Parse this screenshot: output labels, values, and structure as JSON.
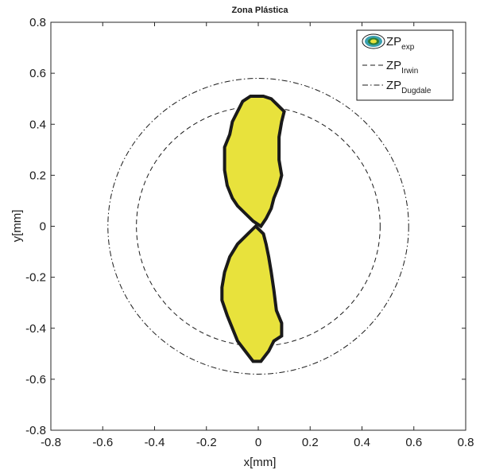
{
  "chart_data": {
    "type": "line",
    "title": "Zona Plástica",
    "xlabel": "x[mm]",
    "ylabel": "y[mm]",
    "xlim": [
      -0.8,
      0.8
    ],
    "ylim": [
      -0.8,
      0.8
    ],
    "xticks": [
      "-0.8",
      "-0.6",
      "-0.4",
      "-0.2",
      "0",
      "0.2",
      "0.4",
      "0.6",
      "0.8"
    ],
    "yticks": [
      "-0.8",
      "-0.6",
      "-0.4",
      "-0.2",
      "0",
      "0.2",
      "0.4",
      "0.6",
      "0.8"
    ],
    "grid": false,
    "legend_position": "top-right",
    "colors": {
      "fill": "#e8e23c",
      "edge": "#1a1a1a",
      "icon_outer": "#3aa0b0",
      "icon_mid": "#2e7d32"
    },
    "series": [
      {
        "name": "ZP",
        "name_sub": "exp",
        "style": "filled-contour",
        "upper_lobe": [
          [
            0.02,
            0.51
          ],
          [
            0.05,
            0.5
          ],
          [
            0.07,
            0.48
          ],
          [
            0.1,
            0.45
          ],
          [
            0.09,
            0.41
          ],
          [
            0.08,
            0.35
          ],
          [
            0.08,
            0.26
          ],
          [
            0.09,
            0.2
          ],
          [
            0.08,
            0.16
          ],
          [
            0.06,
            0.11
          ],
          [
            0.05,
            0.07
          ],
          [
            0.03,
            0.03
          ],
          [
            0.01,
            0.0
          ],
          [
            -0.02,
            0.02
          ],
          [
            -0.05,
            0.05
          ],
          [
            -0.08,
            0.08
          ],
          [
            -0.1,
            0.11
          ],
          [
            -0.12,
            0.16
          ],
          [
            -0.13,
            0.22
          ],
          [
            -0.13,
            0.31
          ],
          [
            -0.11,
            0.36
          ],
          [
            -0.1,
            0.41
          ],
          [
            -0.08,
            0.45
          ],
          [
            -0.06,
            0.49
          ],
          [
            -0.03,
            0.51
          ]
        ],
        "lower_lobe": [
          [
            -0.01,
            0.0
          ],
          [
            -0.04,
            -0.03
          ],
          [
            -0.08,
            -0.07
          ],
          [
            -0.11,
            -0.12
          ],
          [
            -0.13,
            -0.18
          ],
          [
            -0.14,
            -0.24
          ],
          [
            -0.14,
            -0.29
          ],
          [
            -0.12,
            -0.35
          ],
          [
            -0.1,
            -0.4
          ],
          [
            -0.08,
            -0.45
          ],
          [
            -0.05,
            -0.49
          ],
          [
            -0.02,
            -0.53
          ],
          [
            0.01,
            -0.53
          ],
          [
            0.04,
            -0.49
          ],
          [
            0.06,
            -0.45
          ],
          [
            0.09,
            -0.43
          ],
          [
            0.09,
            -0.38
          ],
          [
            0.07,
            -0.33
          ],
          [
            0.06,
            -0.25
          ],
          [
            0.05,
            -0.18
          ],
          [
            0.04,
            -0.12
          ],
          [
            0.03,
            -0.07
          ],
          [
            0.02,
            -0.03
          ]
        ]
      },
      {
        "name": "ZP",
        "name_sub": "Irwin",
        "style": "dashed",
        "shape": "circle",
        "radius": 0.47
      },
      {
        "name": "ZP",
        "name_sub": "Dugdale",
        "style": "dash-dot",
        "shape": "circle",
        "radius": 0.58
      }
    ]
  }
}
